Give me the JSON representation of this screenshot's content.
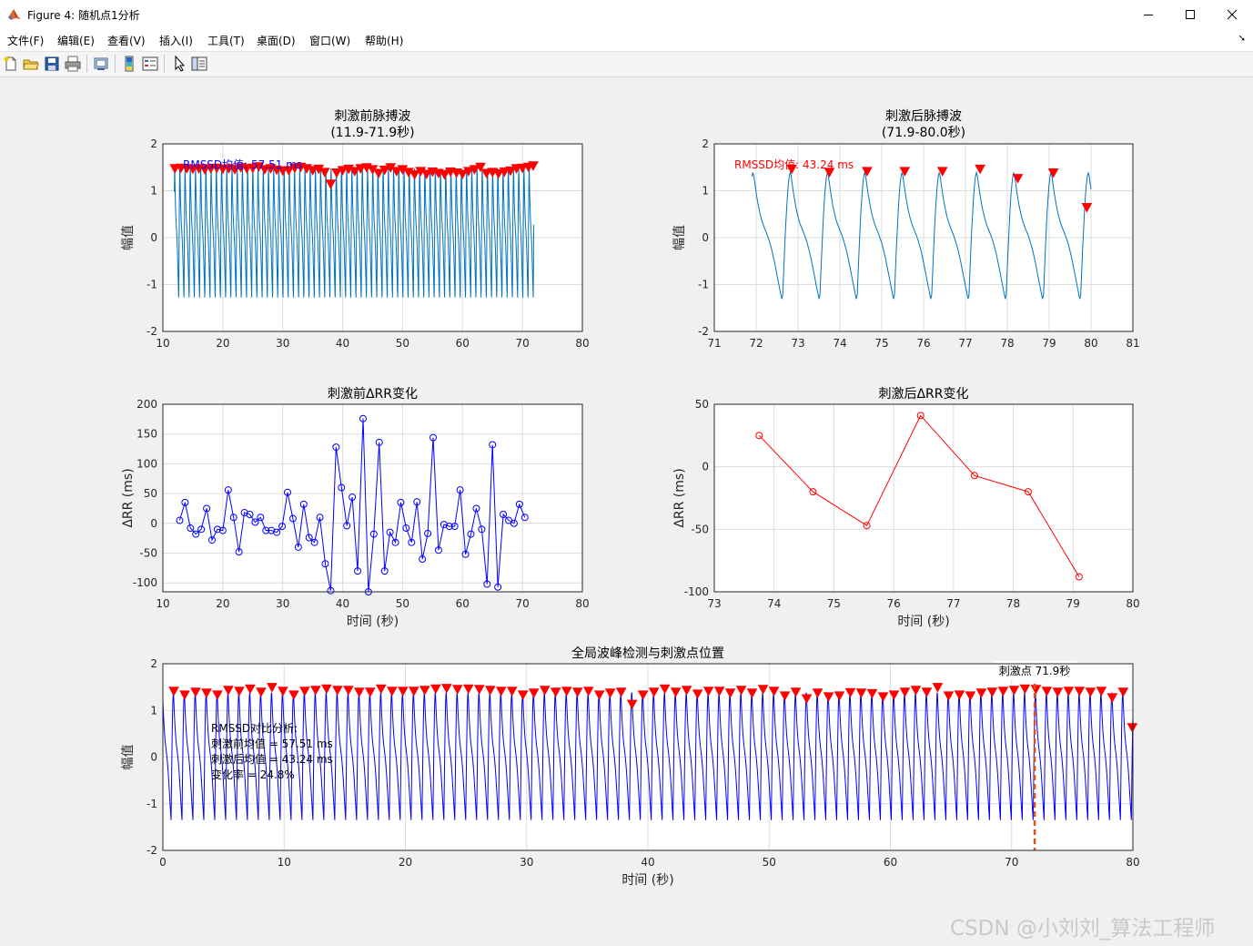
{
  "window": {
    "title": "Figure 4: 随机点1分析",
    "minimize_icon": "minimize-icon",
    "maximize_icon": "maximize-icon",
    "close_icon": "close-icon"
  },
  "menu": [
    {
      "label": "文件(F)"
    },
    {
      "label": "编辑(E)"
    },
    {
      "label": "查看(V)"
    },
    {
      "label": "插入(I)"
    },
    {
      "label": "工具(T)"
    },
    {
      "label": "桌面(D)"
    },
    {
      "label": "窗口(W)"
    },
    {
      "label": "帮助(H)"
    }
  ],
  "toolbar": [
    "new-figure-icon",
    "open-file-icon",
    "save-icon",
    "print-icon",
    "print-preview-icon",
    "colorbar-icon",
    "legend-icon",
    "select-arrow-icon",
    "property-inspector-icon"
  ],
  "colors": {
    "pulse": "#0072bd",
    "blue": "#0000ff",
    "red": "#ff0000",
    "stim": "#d95319",
    "grid": "#dcdcdc"
  },
  "watermark": "CSDN @小刘刘_算法工程师",
  "chart_data": [
    {
      "id": "pre-pulse",
      "type": "line",
      "title": "刺激前脉搏波",
      "subtitle": "(11.9-71.9秒)",
      "ylabel": "幅值",
      "xlabel": "",
      "xlim": [
        10,
        80
      ],
      "ylim": [
        -2,
        2
      ],
      "xticks": [
        10,
        20,
        30,
        40,
        50,
        60,
        70,
        80
      ],
      "yticks": [
        -2,
        -1,
        0,
        1,
        2
      ],
      "annotation": "RMSSD均值: 57.51 ms",
      "waveform": {
        "t_start": 11.9,
        "t_end": 71.9,
        "beat_period": 0.87,
        "peak_level": 1.48,
        "trough_level": -1.33
      },
      "peak_markers": [
        [
          12.0,
          1.46
        ],
        [
          13.0,
          1.47
        ],
        [
          14.0,
          1.46
        ],
        [
          15.0,
          1.45
        ],
        [
          16.0,
          1.46
        ],
        [
          17.0,
          1.44
        ],
        [
          18.0,
          1.46
        ],
        [
          19.0,
          1.47
        ],
        [
          20.0,
          1.45
        ],
        [
          21.0,
          1.46
        ],
        [
          22.0,
          1.44
        ],
        [
          23.0,
          1.48
        ],
        [
          24.0,
          1.46
        ],
        [
          25.0,
          1.47
        ],
        [
          26.0,
          1.5
        ],
        [
          27.0,
          1.44
        ],
        [
          28.0,
          1.46
        ],
        [
          29.0,
          1.43
        ],
        [
          30.0,
          1.41
        ],
        [
          31.0,
          1.42
        ],
        [
          32.0,
          1.47
        ],
        [
          33.0,
          1.49
        ],
        [
          34.0,
          1.46
        ],
        [
          35.0,
          1.42
        ],
        [
          36.0,
          1.45
        ],
        [
          37.0,
          1.38
        ],
        [
          38.0,
          1.13
        ],
        [
          39.0,
          1.37
        ],
        [
          40.0,
          1.42
        ],
        [
          41.0,
          1.45
        ],
        [
          42.0,
          1.4
        ],
        [
          43.0,
          1.46
        ],
        [
          44.0,
          1.48
        ],
        [
          45.0,
          1.44
        ],
        [
          46.0,
          1.36
        ],
        [
          47.0,
          1.43
        ],
        [
          48.0,
          1.48
        ],
        [
          49.0,
          1.4
        ],
        [
          50.0,
          1.44
        ],
        [
          51.0,
          1.38
        ],
        [
          52.0,
          1.33
        ],
        [
          53.0,
          1.4
        ],
        [
          54.0,
          1.34
        ],
        [
          55.0,
          1.39
        ],
        [
          56.0,
          1.36
        ],
        [
          57.0,
          1.33
        ],
        [
          58.0,
          1.39
        ],
        [
          59.0,
          1.37
        ],
        [
          60.0,
          1.34
        ],
        [
          61.0,
          1.4
        ],
        [
          62.0,
          1.44
        ],
        [
          63.0,
          1.49
        ],
        [
          64.0,
          1.36
        ],
        [
          65.0,
          1.38
        ],
        [
          66.0,
          1.35
        ],
        [
          67.0,
          1.39
        ],
        [
          68.0,
          1.41
        ],
        [
          69.0,
          1.46
        ],
        [
          70.0,
          1.47
        ],
        [
          71.0,
          1.49
        ],
        [
          71.8,
          1.52
        ]
      ]
    },
    {
      "id": "post-pulse",
      "type": "line",
      "title": "刺激后脉搏波",
      "subtitle": "(71.9-80.0秒)",
      "ylabel": "幅值",
      "xlabel": "",
      "xlim": [
        71,
        81
      ],
      "ylim": [
        -2,
        2
      ],
      "xticks": [
        71,
        72,
        73,
        74,
        75,
        76,
        77,
        78,
        79,
        80,
        81
      ],
      "yticks": [
        -2,
        -1,
        0,
        1,
        2
      ],
      "annotation": "RMSSD均值: 43.24 ms",
      "waveform": {
        "t_start": 71.9,
        "t_end": 80.0,
        "beat_period": 0.89,
        "peak_level": 1.4,
        "trough_level": -1.37
      },
      "peak_markers": [
        [
          72.85,
          1.45
        ],
        [
          73.75,
          1.38
        ],
        [
          74.65,
          1.4
        ],
        [
          75.55,
          1.4
        ],
        [
          76.45,
          1.4
        ],
        [
          77.35,
          1.45
        ],
        [
          78.25,
          1.25
        ],
        [
          79.1,
          1.37
        ],
        [
          79.9,
          0.63
        ]
      ]
    },
    {
      "id": "pre-drr",
      "type": "line",
      "title": "刺激前ΔRR变化",
      "xlabel": "时间 (秒)",
      "ylabel": "ΔRR (ms)",
      "xlim": [
        10,
        80
      ],
      "ylim": [
        -115,
        200
      ],
      "xticks": [
        10,
        20,
        30,
        40,
        50,
        60,
        70,
        80
      ],
      "yticks": [
        -100,
        -50,
        0,
        50,
        100,
        150,
        200
      ],
      "x": [
        12.8,
        13.7,
        14.6,
        15.5,
        16.4,
        17.3,
        18.2,
        19.1,
        20.0,
        20.9,
        21.8,
        22.7,
        23.6,
        24.5,
        25.4,
        26.3,
        27.2,
        28.1,
        29.0,
        29.9,
        30.8,
        31.7,
        32.6,
        33.5,
        34.4,
        35.3,
        36.2,
        37.1,
        38.0,
        38.9,
        39.8,
        40.7,
        41.6,
        42.5,
        43.4,
        44.3,
        45.2,
        46.1,
        47.0,
        47.9,
        48.8,
        49.7,
        50.6,
        51.5,
        52.4,
        53.3,
        54.2,
        55.1,
        56.0,
        56.9,
        57.8,
        58.7,
        59.6,
        60.5,
        61.4,
        62.3,
        63.2,
        64.1,
        65.0,
        65.9,
        66.8,
        67.7,
        68.6,
        69.5,
        70.4,
        71.3
      ],
      "values": [
        5,
        35,
        -8,
        -18,
        -10,
        25,
        -28,
        -10,
        -12,
        56,
        10,
        -48,
        18,
        15,
        2,
        10,
        -12,
        -12,
        -15,
        -5,
        52,
        8,
        -40,
        32,
        -24,
        -32,
        10,
        -68,
        -113,
        128,
        60,
        -4,
        44,
        -80,
        176,
        -115,
        -18,
        136,
        -80,
        -15,
        -32,
        35,
        -8,
        -32,
        36,
        -60,
        -17,
        144,
        -45,
        -2,
        -5,
        -5,
        56,
        -52,
        -18,
        25,
        -10,
        -102,
        132,
        -107,
        15,
        5,
        0,
        32,
        10,
        null
      ]
    },
    {
      "id": "post-drr",
      "type": "line",
      "title": "刺激后ΔRR变化",
      "xlabel": "时间 (秒)",
      "ylabel": "ΔRR (ms)",
      "xlim": [
        73,
        80
      ],
      "ylim": [
        -100,
        50
      ],
      "xticks": [
        73,
        74,
        75,
        76,
        77,
        78,
        79,
        80
      ],
      "yticks": [
        -100,
        -50,
        0,
        50
      ],
      "x": [
        73.75,
        74.65,
        75.55,
        76.45,
        77.35,
        78.25,
        79.1
      ],
      "values": [
        25,
        -20,
        -47,
        41,
        -7,
        -20,
        -88
      ]
    },
    {
      "id": "global",
      "type": "line",
      "title": "全局波峰检测与刺激点位置",
      "xlabel": "时间 (秒)",
      "ylabel": "幅值",
      "xlim": [
        0,
        80
      ],
      "ylim": [
        -2,
        2
      ],
      "xticks": [
        0,
        10,
        20,
        30,
        40,
        50,
        60,
        70,
        80
      ],
      "yticks": [
        -2,
        -1,
        0,
        1,
        2
      ],
      "stim_time": 71.9,
      "stim_label": "刺激点 71.9秒",
      "waveform": {
        "t_start": 0,
        "t_end": 80.0,
        "beat_period": 0.9,
        "peak_level": 1.4,
        "trough_level": -1.35
      },
      "comparison_text": [
        "RMSSD对比分析:",
        "刺激前均值 = 57.51 ms",
        "刺激后均值 = 43.24 ms",
        "变化率 = 24.8%"
      ],
      "peak_markers": [
        [
          0.9,
          1.4
        ],
        [
          1.8,
          1.32
        ],
        [
          2.7,
          1.38
        ],
        [
          3.6,
          1.36
        ],
        [
          4.5,
          1.32
        ],
        [
          5.4,
          1.42
        ],
        [
          6.3,
          1.4
        ],
        [
          7.2,
          1.45
        ],
        [
          8.1,
          1.38
        ],
        [
          9.0,
          1.48
        ],
        [
          9.9,
          1.4
        ],
        [
          10.8,
          1.32
        ],
        [
          11.7,
          1.4
        ],
        [
          12.6,
          1.42
        ],
        [
          13.5,
          1.45
        ],
        [
          14.4,
          1.42
        ],
        [
          15.3,
          1.42
        ],
        [
          16.2,
          1.38
        ],
        [
          17.1,
          1.38
        ],
        [
          18.0,
          1.45
        ],
        [
          18.9,
          1.4
        ],
        [
          19.8,
          1.4
        ],
        [
          20.7,
          1.4
        ],
        [
          21.6,
          1.42
        ],
        [
          22.5,
          1.45
        ],
        [
          23.4,
          1.46
        ],
        [
          24.3,
          1.44
        ],
        [
          25.2,
          1.45
        ],
        [
          26.1,
          1.44
        ],
        [
          27.0,
          1.42
        ],
        [
          27.9,
          1.4
        ],
        [
          28.8,
          1.4
        ],
        [
          29.7,
          1.32
        ],
        [
          30.6,
          1.36
        ],
        [
          31.5,
          1.42
        ],
        [
          32.4,
          1.38
        ],
        [
          33.3,
          1.4
        ],
        [
          34.2,
          1.38
        ],
        [
          35.1,
          1.4
        ],
        [
          36.0,
          1.32
        ],
        [
          36.9,
          1.36
        ],
        [
          37.8,
          1.38
        ],
        [
          38.7,
          1.12
        ],
        [
          39.6,
          1.32
        ],
        [
          40.5,
          1.38
        ],
        [
          41.4,
          1.45
        ],
        [
          42.3,
          1.38
        ],
        [
          43.2,
          1.42
        ],
        [
          44.1,
          1.34
        ],
        [
          45.0,
          1.4
        ],
        [
          45.9,
          1.4
        ],
        [
          46.8,
          1.36
        ],
        [
          47.7,
          1.42
        ],
        [
          48.6,
          1.36
        ],
        [
          49.5,
          1.44
        ],
        [
          50.4,
          1.4
        ],
        [
          51.3,
          1.3
        ],
        [
          52.2,
          1.38
        ],
        [
          53.1,
          1.24
        ],
        [
          54.0,
          1.36
        ],
        [
          54.9,
          1.28
        ],
        [
          55.8,
          1.3
        ],
        [
          56.7,
          1.37
        ],
        [
          57.6,
          1.36
        ],
        [
          58.5,
          1.35
        ],
        [
          59.4,
          1.28
        ],
        [
          60.3,
          1.32
        ],
        [
          61.2,
          1.38
        ],
        [
          62.1,
          1.42
        ],
        [
          63.0,
          1.38
        ],
        [
          63.9,
          1.48
        ],
        [
          64.8,
          1.3
        ],
        [
          65.7,
          1.32
        ],
        [
          66.6,
          1.3
        ],
        [
          67.5,
          1.36
        ],
        [
          68.4,
          1.38
        ],
        [
          69.3,
          1.4
        ],
        [
          70.2,
          1.42
        ],
        [
          71.1,
          1.45
        ],
        [
          72.0,
          1.44
        ],
        [
          72.9,
          1.4
        ],
        [
          73.8,
          1.38
        ],
        [
          74.7,
          1.4
        ],
        [
          75.6,
          1.4
        ],
        [
          76.5,
          1.38
        ],
        [
          77.4,
          1.4
        ],
        [
          78.3,
          1.26
        ],
        [
          79.2,
          1.38
        ],
        [
          79.95,
          0.62
        ]
      ]
    }
  ]
}
